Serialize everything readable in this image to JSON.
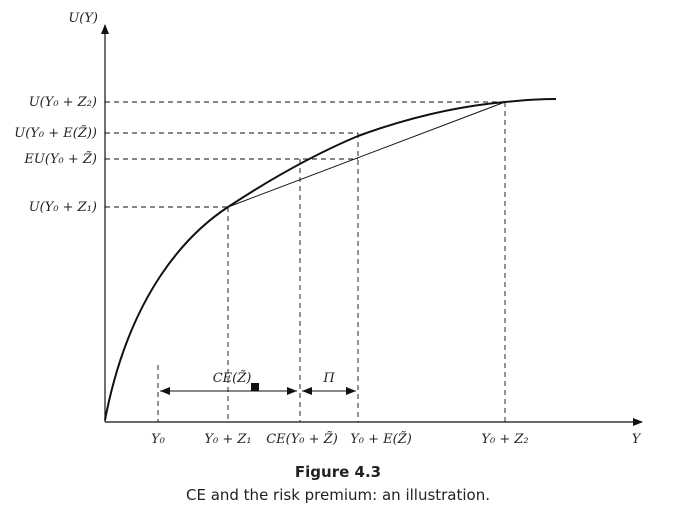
{
  "axes": {
    "y_label": "U(Y)",
    "x_label": "Y"
  },
  "y_ticks": [
    "U(Y₀ + Z₂)",
    "U(Y₀ + E(Z̃))",
    "EU(Y₀ + Z̃)",
    "U(Y₀ + Z₁)"
  ],
  "x_ticks": [
    "Y₀",
    "Y₀ + Z₁",
    "CE(Y₀ + Z̃)",
    "Y₀ + E(Z̃)",
    "Y₀ + Z₂"
  ],
  "annotations": {
    "ce": "CE(Z̃)",
    "risk_premium": "Π"
  },
  "caption": {
    "title": "Figure 4.3",
    "text": "CE and the risk premium: an illustration."
  }
}
